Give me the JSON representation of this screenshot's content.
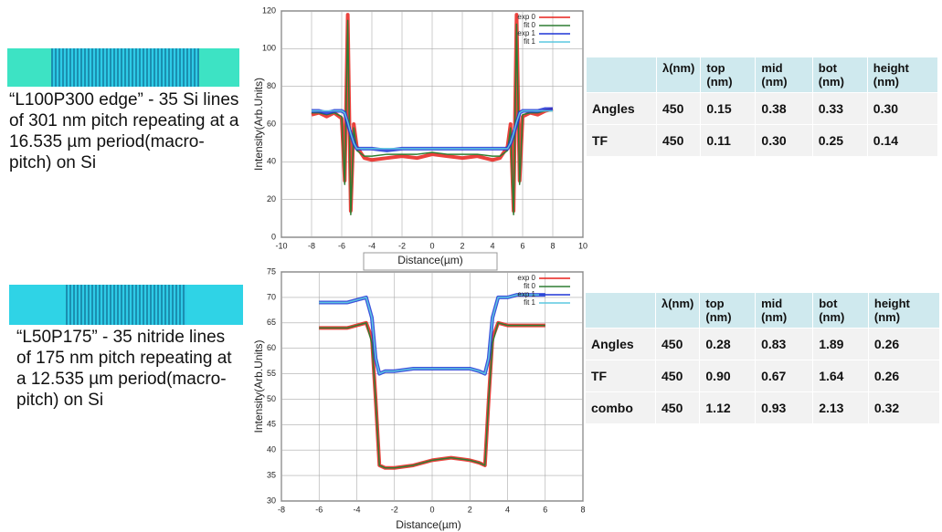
{
  "chart_data": [
    {
      "type": "line",
      "x_label": "Distance(µm)",
      "y_label": "Intensity(Arb.Units)",
      "xlim": [
        -10,
        10
      ],
      "xticks": [
        -10,
        -8,
        -6,
        -4,
        -2,
        0,
        2,
        4,
        6,
        8,
        10
      ],
      "ylim": [
        0,
        120
      ],
      "yticks": [
        0,
        20,
        40,
        60,
        80,
        100,
        120
      ],
      "grid": true,
      "legend": "top-right",
      "x": [
        -8,
        -7.5,
        -7,
        -6.5,
        -6,
        -5.8,
        -5.6,
        -5.4,
        -5.2,
        -5,
        -4.5,
        -4,
        -3,
        -2,
        -1,
        0,
        1,
        2,
        3,
        4,
        4.5,
        5,
        5.2,
        5.4,
        5.6,
        5.8,
        6,
        6.5,
        7,
        7.5,
        8
      ],
      "series": [
        {
          "name": "exp 0",
          "color": "#e8211b",
          "values": [
            65,
            66,
            64,
            66,
            63,
            30,
            118,
            14,
            60,
            48,
            42,
            41,
            42,
            43,
            42,
            44,
            43,
            42,
            43,
            41,
            42,
            48,
            60,
            14,
            118,
            30,
            64,
            66,
            65,
            67,
            68
          ]
        },
        {
          "name": "fit 0",
          "color": "#2e7d32",
          "values": [
            66,
            66,
            65,
            66,
            64,
            28,
            115,
            12,
            58,
            46,
            43,
            43,
            44,
            44,
            44,
            45,
            44,
            44,
            44,
            43,
            43,
            46,
            58,
            12,
            113,
            28,
            65,
            66,
            66,
            67,
            67
          ]
        },
        {
          "name": "exp 1",
          "color": "#1f35d6",
          "values": [
            67,
            67,
            66,
            67,
            67,
            66,
            60,
            55,
            50,
            47,
            47,
            47,
            46,
            47,
            47,
            47,
            47,
            47,
            47,
            47,
            47,
            47,
            50,
            55,
            60,
            66,
            67,
            67,
            67,
            68,
            68
          ]
        },
        {
          "name": "fit 1",
          "color": "#5bc8e0",
          "values": [
            67,
            67,
            67,
            67,
            67,
            66,
            61,
            55,
            50,
            47,
            47,
            47,
            47,
            47,
            47,
            47,
            47,
            47,
            47,
            47,
            47,
            47,
            50,
            55,
            61,
            66,
            67,
            67,
            67,
            67,
            67
          ]
        }
      ]
    },
    {
      "type": "line",
      "x_label": "Distance(µm)",
      "y_label": "Intensity(Arb.Units)",
      "xlim": [
        -8,
        8
      ],
      "xticks": [
        -8,
        -6,
        -4,
        -2,
        0,
        2,
        4,
        6,
        8
      ],
      "ylim": [
        30,
        75
      ],
      "yticks": [
        30,
        35,
        40,
        45,
        50,
        55,
        60,
        65,
        70,
        75
      ],
      "grid": true,
      "legend": "top-right",
      "x": [
        -6,
        -5.5,
        -5,
        -4.5,
        -4,
        -3.5,
        -3.2,
        -3,
        -2.8,
        -2.5,
        -2,
        -1,
        0,
        1,
        2,
        2.5,
        2.8,
        3,
        3.2,
        3.5,
        4,
        4.5,
        5,
        5.5,
        6
      ],
      "series": [
        {
          "name": "exp 0",
          "color": "#e8211b",
          "values": [
            64,
            64,
            64,
            64,
            64.5,
            65,
            62,
            50,
            37,
            36.5,
            36.5,
            37,
            38,
            38.5,
            38,
            37.5,
            37,
            50,
            62,
            65,
            64.5,
            64.5,
            64.5,
            64.5,
            64.5
          ]
        },
        {
          "name": "fit 0",
          "color": "#2e7d32",
          "values": [
            64,
            64,
            64,
            64,
            64.5,
            65,
            61,
            50,
            37,
            36.5,
            36.5,
            37,
            38,
            38.5,
            38,
            37.5,
            37,
            50,
            61,
            65,
            64.5,
            64.5,
            64.5,
            64.5,
            64.5
          ]
        },
        {
          "name": "exp 1",
          "color": "#1f35d6",
          "values": [
            69,
            69,
            69,
            69,
            69.5,
            70,
            66,
            58,
            55,
            55.5,
            55.5,
            56,
            56,
            56,
            56,
            55.5,
            55,
            58,
            66,
            70,
            70,
            70.5,
            70.5,
            70.5,
            70.5
          ]
        },
        {
          "name": "fit 1",
          "color": "#5bc8e0",
          "values": [
            69,
            69,
            69,
            69,
            69.5,
            70,
            66,
            58,
            55,
            55.5,
            55.5,
            56,
            56,
            56,
            56,
            55.5,
            55,
            58,
            66,
            70,
            70,
            70.5,
            70.5,
            70.5,
            70.5
          ]
        }
      ]
    }
  ],
  "samples": [
    {
      "description": "“L100P300 edge”  - 35 Si lines of 301 nm pitch repeating at a 16.535 µm period(macro-pitch) on Si",
      "table": {
        "header": [
          "λ(nm)",
          "top (nm)",
          "mid (nm)",
          "bot (nm)",
          "height (nm)"
        ],
        "rows": [
          [
            "Angles",
            "450",
            "0.15",
            "0.38",
            "0.33",
            "0.30"
          ],
          [
            "TF",
            "450",
            "0.11",
            "0.30",
            "0.25",
            "0.14"
          ]
        ]
      }
    },
    {
      "description": "“L50P175”  - 35 nitride lines of 175 nm pitch repeating at a 12.535 µm period(macro-pitch) on Si",
      "table": {
        "header": [
          "λ(nm)",
          "top (nm)",
          "mid (nm)",
          "bot (nm)",
          "height (nm)"
        ],
        "rows": [
          [
            "Angles",
            "450",
            "0.28",
            "0.83",
            "1.89",
            "0.26"
          ],
          [
            "TF",
            "450",
            "0.90",
            "0.67",
            "1.64",
            "0.26"
          ],
          [
            "combo",
            "450",
            "1.12",
            "0.93",
            "2.13",
            "0.32"
          ]
        ]
      }
    }
  ]
}
